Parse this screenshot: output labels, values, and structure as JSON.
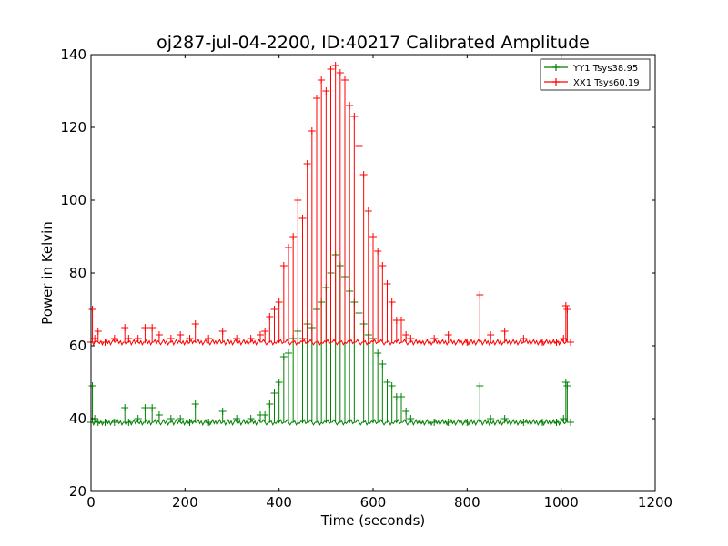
{
  "chart_data": {
    "type": "line",
    "title": "oj287-jul-04-2200, ID:40217 Calibrated Amplitude",
    "xlabel": "Time (seconds)",
    "ylabel": "Power in Kelvin",
    "xlim": [
      0,
      1200
    ],
    "ylim": [
      20,
      140
    ],
    "xticks": [
      0,
      200,
      400,
      600,
      800,
      1000,
      1200
    ],
    "yticks": [
      20,
      40,
      60,
      80,
      100,
      120,
      140
    ],
    "legend_position": "top-right",
    "grid": false,
    "marker": "+",
    "series": [
      {
        "name": "YY1 Tsys38.95",
        "color": "#008000",
        "baseline": 39,
        "x": [
          0,
          3,
          8,
          15,
          30,
          50,
          72,
          80,
          100,
          115,
          130,
          145,
          170,
          190,
          210,
          222,
          250,
          280,
          310,
          340,
          360,
          370,
          380,
          390,
          400,
          410,
          420,
          430,
          440,
          450,
          460,
          470,
          480,
          490,
          500,
          510,
          520,
          530,
          540,
          550,
          560,
          570,
          580,
          590,
          600,
          610,
          620,
          630,
          640,
          650,
          660,
          670,
          680,
          700,
          730,
          760,
          800,
          827,
          850,
          880,
          920,
          960,
          990,
          1005,
          1010,
          1013,
          1020
        ],
        "y": [
          39,
          49,
          40,
          39,
          39,
          39,
          43,
          39,
          40,
          43,
          43,
          41,
          40,
          40,
          39,
          44,
          39,
          42,
          40,
          40,
          41,
          41,
          44,
          47,
          50,
          57,
          58,
          62,
          64,
          62,
          66,
          65,
          70,
          72,
          76,
          80,
          85,
          82,
          79,
          75,
          72,
          69,
          66,
          63,
          62,
          58,
          55,
          50,
          49,
          46,
          46,
          42,
          40,
          39,
          39,
          39,
          39,
          49,
          40,
          40,
          39,
          39,
          39,
          40,
          50,
          49,
          39
        ]
      },
      {
        "name": "XX1 Tsys60.19",
        "color": "#ff0000",
        "baseline": 61,
        "x": [
          0,
          3,
          8,
          15,
          30,
          50,
          72,
          80,
          100,
          115,
          130,
          145,
          170,
          190,
          210,
          222,
          250,
          280,
          310,
          340,
          360,
          370,
          380,
          390,
          400,
          410,
          420,
          430,
          440,
          450,
          460,
          470,
          480,
          490,
          500,
          510,
          520,
          530,
          540,
          550,
          560,
          570,
          580,
          590,
          600,
          610,
          620,
          630,
          640,
          650,
          660,
          670,
          680,
          700,
          730,
          760,
          800,
          827,
          850,
          880,
          920,
          960,
          990,
          1005,
          1010,
          1013,
          1020
        ],
        "y": [
          61,
          70,
          62,
          64,
          61,
          62,
          65,
          62,
          62,
          65,
          65,
          63,
          62,
          63,
          62,
          66,
          62,
          64,
          62,
          62,
          63,
          64,
          68,
          70,
          72,
          82,
          87,
          90,
          100,
          95,
          110,
          119,
          128,
          133,
          130,
          136,
          137,
          135,
          133,
          126,
          123,
          115,
          107,
          97,
          90,
          86,
          82,
          77,
          72,
          67,
          67,
          63,
          62,
          61,
          62,
          63,
          61,
          74,
          63,
          64,
          62,
          61,
          61,
          62,
          71,
          70,
          61
        ]
      }
    ]
  }
}
